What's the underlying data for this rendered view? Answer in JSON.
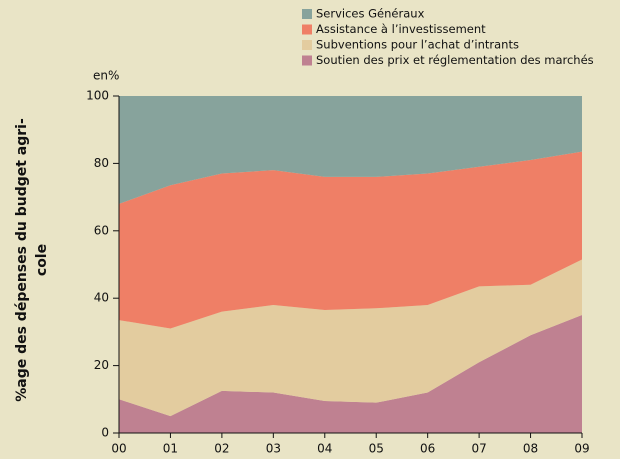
{
  "chart_data": {
    "type": "stacked_area",
    "y_unit_label": "en%",
    "y_label": [
      "%age des dépenses du budget agri-",
      "cole"
    ],
    "categories": [
      "00",
      "01",
      "02",
      "03",
      "04",
      "05",
      "06",
      "07",
      "08",
      "09"
    ],
    "series": [
      {
        "name": "Services Généraux",
        "color": "#87a39c",
        "values": [
          32,
          26.5,
          23,
          22,
          24,
          24,
          23,
          21,
          19,
          16.5
        ]
      },
      {
        "name": "Assistance à l’investissement",
        "color": "#ef7f66",
        "values": [
          34.5,
          42.5,
          41,
          40,
          39.5,
          39,
          39,
          35.5,
          37,
          32
        ]
      },
      {
        "name": "Subventions pour l’achat d’intrants",
        "color": "#e3cc9f",
        "values": [
          23.5,
          26,
          23.5,
          26,
          27,
          28,
          26,
          22.5,
          15,
          16.5
        ]
      },
      {
        "name": "Soutien des prix et réglementation des marchés",
        "color": "#bf8191",
        "values": [
          10,
          5,
          12.5,
          12,
          9.5,
          9,
          12,
          21,
          29,
          35
        ]
      }
    ],
    "ylim": [
      0,
      100
    ],
    "yticks": [
      0,
      20,
      40,
      60,
      80,
      100
    ]
  }
}
